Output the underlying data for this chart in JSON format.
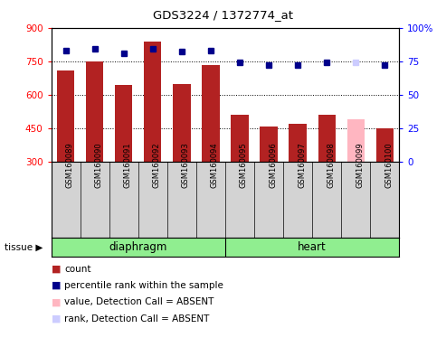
{
  "title": "GDS3224 / 1372774_at",
  "samples": [
    "GSM160089",
    "GSM160090",
    "GSM160091",
    "GSM160092",
    "GSM160093",
    "GSM160094",
    "GSM160095",
    "GSM160096",
    "GSM160097",
    "GSM160098",
    "GSM160099",
    "GSM160100"
  ],
  "bar_values": [
    710,
    750,
    645,
    840,
    648,
    733,
    510,
    455,
    468,
    510,
    490,
    448
  ],
  "bar_colors": [
    "#b22222",
    "#b22222",
    "#b22222",
    "#b22222",
    "#b22222",
    "#b22222",
    "#b22222",
    "#b22222",
    "#b22222",
    "#b22222",
    "#ffb6c1",
    "#b22222"
  ],
  "rank_values": [
    83,
    84,
    81,
    84,
    82,
    83,
    74,
    72,
    72,
    74,
    74,
    72
  ],
  "rank_absent": [
    false,
    false,
    false,
    false,
    false,
    false,
    false,
    false,
    false,
    false,
    true,
    false
  ],
  "ylim_left": [
    300,
    900
  ],
  "ylim_right": [
    0,
    100
  ],
  "yticks_left": [
    300,
    450,
    600,
    750,
    900
  ],
  "yticks_right": [
    0,
    25,
    50,
    75,
    100
  ],
  "groups": [
    {
      "label": "diaphragm",
      "start": 0,
      "end": 5
    },
    {
      "label": "heart",
      "start": 6,
      "end": 11
    }
  ],
  "tissue_label": "tissue",
  "group_color": "#90ee90",
  "bg_color": "#d3d3d3",
  "plot_bg": "#ffffff",
  "legend_items": [
    {
      "color": "#b22222",
      "label": "count"
    },
    {
      "color": "#00008b",
      "label": "percentile rank within the sample"
    },
    {
      "color": "#ffb6c1",
      "label": "value, Detection Call = ABSENT"
    },
    {
      "color": "#ccccff",
      "label": "rank, Detection Call = ABSENT"
    }
  ]
}
